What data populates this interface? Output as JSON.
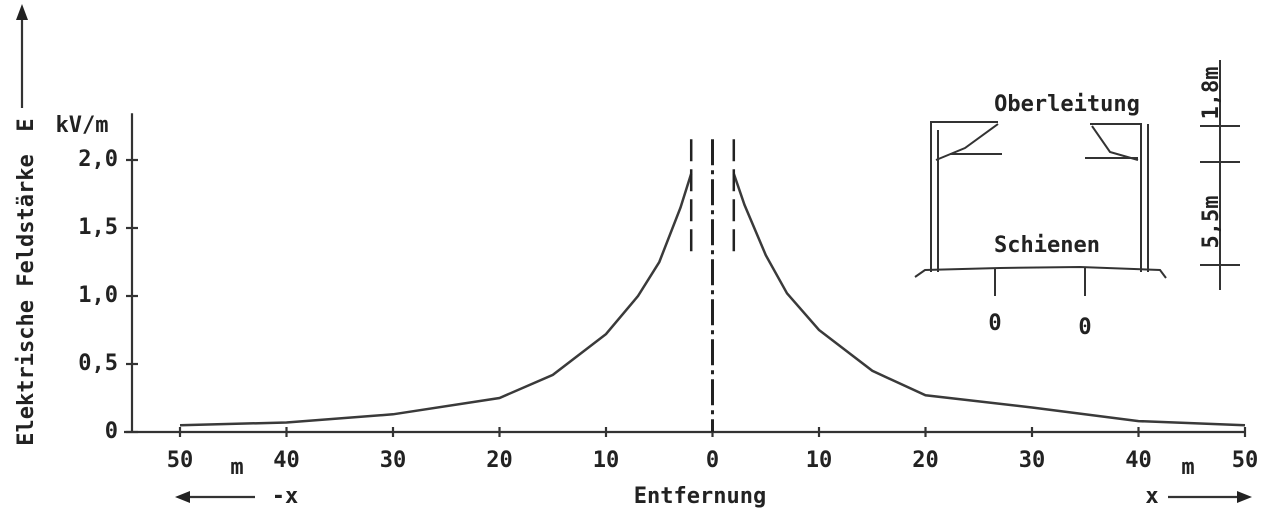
{
  "chart_data": {
    "type": "line",
    "ylabel": "Elektrische Feldstärke",
    "y_symbol": "E",
    "y_unit": "kV/m",
    "xlabel": "Entfernung",
    "x_unit": "m",
    "direction_left": "-x",
    "direction_right": "x",
    "x": [
      -50,
      -40,
      -30,
      -20,
      -15,
      -10,
      -7,
      -5,
      -3,
      -2,
      0,
      2,
      3,
      5,
      7,
      10,
      15,
      20,
      30,
      40,
      50
    ],
    "series": [
      {
        "color": "#3a3a3a",
        "values": [
          0.05,
          0.07,
          0.13,
          0.25,
          0.42,
          0.72,
          1.0,
          1.25,
          1.65,
          1.9,
          null,
          1.9,
          1.67,
          1.3,
          1.02,
          0.75,
          0.45,
          0.27,
          0.18,
          0.08,
          0.05
        ]
      }
    ],
    "xlim": [
      -50,
      50
    ],
    "xticks": [
      {
        "value": -50,
        "label": "50"
      },
      {
        "value": -40,
        "label": "40"
      },
      {
        "value": -30,
        "label": "30"
      },
      {
        "value": -20,
        "label": "20"
      },
      {
        "value": -10,
        "label": "10"
      },
      0,
      10,
      20,
      30,
      40,
      50
    ],
    "ylim": [
      0,
      2.3
    ],
    "yticks": [
      0,
      {
        "value": 0.5,
        "label": "0,5"
      },
      {
        "value": 1.0,
        "label": "1,0"
      },
      {
        "value": 1.5,
        "label": "1,5"
      },
      {
        "value": 2.0,
        "label": "2,0"
      }
    ],
    "grid": false
  },
  "inset": {
    "overhead_line": "Oberleitung",
    "rails": "Schienen",
    "rail_zero_left": "0",
    "rail_zero_right": "0",
    "height_upper": "1,8m",
    "height_lower": "5,5m"
  }
}
